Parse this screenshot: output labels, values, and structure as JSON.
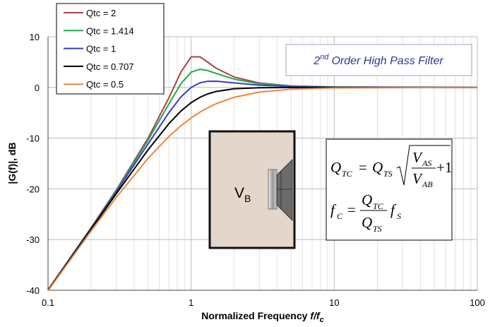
{
  "chart_data": {
    "type": "line",
    "y_label": "|G(f)|, dB",
    "x_label": [
      "Normalized Frequency",
      "f/f",
      "c"
    ],
    "annotation": [
      "2",
      "nd",
      "Order High Pass Filter"
    ],
    "box_label": [
      "V",
      "B"
    ],
    "equation": [
      "Q",
      "TC",
      "=",
      "Q",
      "TS",
      "V",
      "AS",
      "V",
      "AB",
      "+1",
      "f",
      "C",
      "=",
      "Q",
      "TC",
      "Q",
      "TS",
      "f",
      "S"
    ],
    "x": [
      0.1,
      0.2,
      0.3,
      0.5,
      0.7,
      0.85,
      1,
      1.15,
      1.3,
      1.5,
      2,
      3,
      5,
      10,
      100
    ],
    "series": [
      {
        "name": "Qtc = 2",
        "color": "#a94442",
        "values": [
          -39.92,
          -27.65,
          -20.22,
          -10.0,
          -2.03,
          3.07,
          6.02,
          6.05,
          5.02,
          3.77,
          2.04,
          0.87,
          0.31,
          0.08,
          0
        ]
      },
      {
        "name": "Qtc = 1.414",
        "color": "#22a84e",
        "values": [
          -39.93,
          -27.7,
          -20.33,
          -10.41,
          -3.23,
          0.76,
          3.01,
          3.59,
          3.35,
          2.75,
          1.63,
          0.72,
          0.26,
          0.07,
          0
        ]
      },
      {
        "name": "Qtc = 1",
        "color": "#3b3bc4",
        "values": [
          -39.96,
          -27.79,
          -20.55,
          -11.14,
          -4.95,
          -1.85,
          0,
          0.89,
          1.2,
          1.23,
          0.9,
          0.45,
          0.17,
          0.04,
          0
        ]
      },
      {
        "name": "Qtc = 0.707",
        "color": "#000000",
        "values": [
          -40.0,
          -27.97,
          -20.95,
          -12.3,
          -7.13,
          -4.64,
          -3.01,
          -1.96,
          -1.3,
          -0.79,
          -0.26,
          -0.06,
          -0.01,
          0,
          0
        ]
      },
      {
        "name": "Qtc = 0.5",
        "color": "#e8873a",
        "values": [
          -40.09,
          -28.3,
          -21.67,
          -13.98,
          -9.66,
          -7.54,
          -6.02,
          -4.89,
          -4.04,
          -3.2,
          -1.94,
          -0.92,
          -0.34,
          -0.09,
          0
        ]
      }
    ],
    "xlim": [
      0.1,
      100
    ],
    "xticks": [
      0.1,
      1,
      10,
      100
    ],
    "xminorticks": [
      0.2,
      0.3,
      0.4,
      0.5,
      0.6,
      0.7,
      0.8,
      0.9,
      2,
      3,
      4,
      5,
      6,
      7,
      8,
      9,
      20,
      30,
      40,
      50,
      60,
      70,
      80,
      90
    ],
    "ylim": [
      -40,
      10
    ],
    "yticks": [
      -40,
      -30,
      -20,
      -10,
      0,
      10
    ],
    "log_x": true,
    "grid": true,
    "legend": "upper left"
  }
}
